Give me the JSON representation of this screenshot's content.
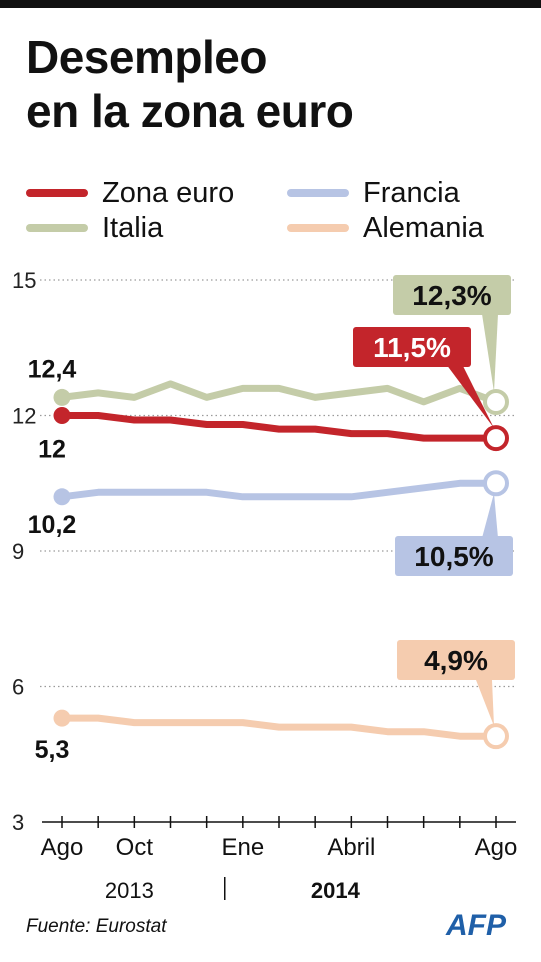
{
  "title_lines": [
    "Desempleo",
    "en la zona euro"
  ],
  "source": "Fuente: Eurostat",
  "logo_text": "AFP",
  "chart_data": {
    "type": "line",
    "x": [
      "2013-08",
      "2013-09",
      "2013-10",
      "2013-11",
      "2013-12",
      "2014-01",
      "2014-02",
      "2014-03",
      "2014-04",
      "2014-05",
      "2014-06",
      "2014-07",
      "2014-08"
    ],
    "x_tick_labels": [
      {
        "x": "2013-08",
        "label": "Ago"
      },
      {
        "x": "2013-10",
        "label": "Oct"
      },
      {
        "x": "2014-01",
        "label": "Ene"
      },
      {
        "x": "2014-04",
        "label": "Abril"
      },
      {
        "x": "2014-08",
        "label": "Ago"
      }
    ],
    "year_labels": [
      {
        "label": "2013",
        "bold": false
      },
      {
        "label": "2014",
        "bold": true
      }
    ],
    "ylim": [
      3,
      15
    ],
    "y_ticks": [
      3,
      6,
      9,
      12,
      15
    ],
    "y_tick_labels": [
      "3",
      "6",
      "9",
      "12",
      "15"
    ],
    "grid": "dotted horizontal at 6, 9, 12, 15",
    "legend_position": "top",
    "series": [
      {
        "name": "Zona euro",
        "color": "#c3252b",
        "values": [
          12.0,
          12.0,
          11.9,
          11.9,
          11.8,
          11.8,
          11.7,
          11.7,
          11.6,
          11.6,
          11.5,
          11.5,
          11.5
        ],
        "start_label": "12",
        "end_label": "11,5%"
      },
      {
        "name": "Italia",
        "color": "#c4cca8",
        "values": [
          12.4,
          12.5,
          12.4,
          12.7,
          12.4,
          12.6,
          12.6,
          12.4,
          12.5,
          12.6,
          12.3,
          12.6,
          12.3
        ],
        "start_label": "12,4",
        "end_label": "12,3%"
      },
      {
        "name": "Francia",
        "color": "#b7c4e4",
        "values": [
          10.2,
          10.3,
          10.3,
          10.3,
          10.3,
          10.2,
          10.2,
          10.2,
          10.2,
          10.3,
          10.4,
          10.5,
          10.5
        ],
        "start_label": "10,2",
        "end_label": "10,5%"
      },
      {
        "name": "Alemania",
        "color": "#f5ccaf",
        "values": [
          5.3,
          5.3,
          5.2,
          5.2,
          5.2,
          5.2,
          5.1,
          5.1,
          5.1,
          5.0,
          5.0,
          4.9,
          4.9
        ],
        "start_label": "5,3",
        "end_label": "4,9%"
      }
    ]
  }
}
